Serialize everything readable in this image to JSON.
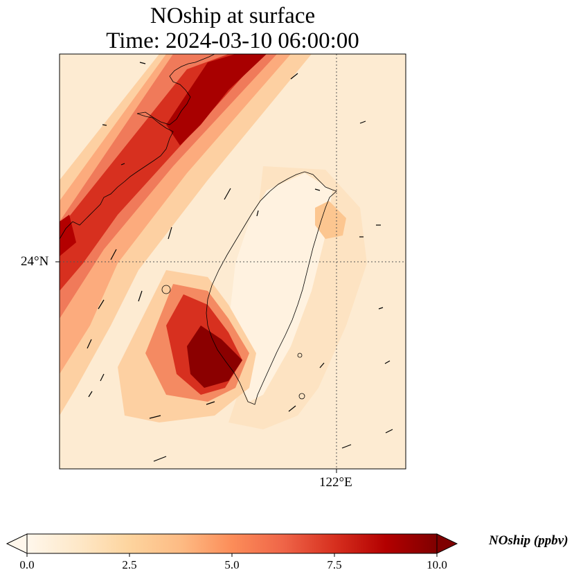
{
  "title": {
    "line1": "NOship at surface",
    "line2": "Time: 2024-03-10 06:00:00"
  },
  "axes": {
    "lat_label": "24°N",
    "lon_label": "122°E"
  },
  "colorbar": {
    "label": "NOship (ppbv)",
    "ticks": [
      "0.0",
      "2.5",
      "5.0",
      "7.5",
      "10.0"
    ],
    "min": 0,
    "max": 10,
    "extend": "both",
    "colormap": "OrRd",
    "colors": [
      "#fff7ec",
      "#fee8c8",
      "#fdd49e",
      "#fdbb84",
      "#fc8d59",
      "#ef6548",
      "#d7301f",
      "#b30000",
      "#7f0000"
    ]
  },
  "map": {
    "background": "#fdebd2",
    "gridlines": "dotted",
    "features": [
      "coastline",
      "wind-vectors"
    ]
  }
}
